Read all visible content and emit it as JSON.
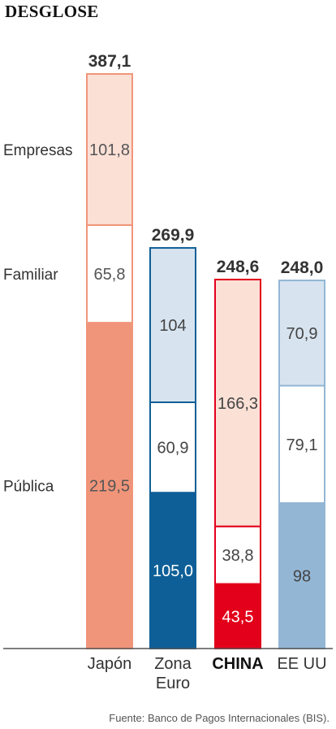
{
  "title": "DESGLOSE",
  "source": "Fuente: Banco de Pagos Internacionales (BIS).",
  "chart_data": {
    "type": "bar",
    "stacked": true,
    "categories": [
      "Japón",
      "Zona Euro",
      "CHINA",
      "EE UU"
    ],
    "category_lines": [
      [
        "Japón"
      ],
      [
        "Zona",
        "Euro"
      ],
      [
        "CHINA"
      ],
      [
        "EE UU"
      ]
    ],
    "highlight_category": "CHINA",
    "totals": [
      "387,1",
      "269,9",
      "248,6",
      "248,0"
    ],
    "ylim": [
      0,
      387.1
    ],
    "series": [
      {
        "name": "Pública",
        "values": [
          219.5,
          105.0,
          43.5,
          98
        ],
        "labels": [
          "219,5",
          "105,0",
          "43,5",
          "98"
        ]
      },
      {
        "name": "Familiar",
        "values": [
          65.8,
          60.9,
          38.8,
          79.1
        ],
        "labels": [
          "65,8",
          "60,9",
          "38,8",
          "79,1"
        ]
      },
      {
        "name": "Empresas",
        "values": [
          101.8,
          104,
          166.3,
          70.9
        ],
        "labels": [
          "101,8",
          "104",
          "166,3",
          "70,9"
        ]
      }
    ],
    "colors": {
      "Japón": {
        "fills": [
          "#f0957a",
          "#ffffff",
          "#fbe0d6"
        ],
        "stroke": "#f0957a",
        "label": [
          "#555555",
          "#555555",
          "#555555"
        ]
      },
      "Zona Euro": {
        "fills": [
          "#0e5f97",
          "#ffffff",
          "#d7e4f0"
        ],
        "stroke": "#0e5f97",
        "label": [
          "#ffffff",
          "#444444",
          "#444444"
        ]
      },
      "CHINA": {
        "fills": [
          "#e2001a",
          "#ffffff",
          "#fbe0d6"
        ],
        "stroke": "#e2001a",
        "label": [
          "#ffffff",
          "#444444",
          "#444444"
        ]
      },
      "EE UU": {
        "fills": [
          "#93b6d5",
          "#ffffff",
          "#d7e4f0"
        ],
        "stroke": "#93b6d5",
        "label": [
          "#444444",
          "#444444",
          "#444444"
        ]
      }
    }
  }
}
